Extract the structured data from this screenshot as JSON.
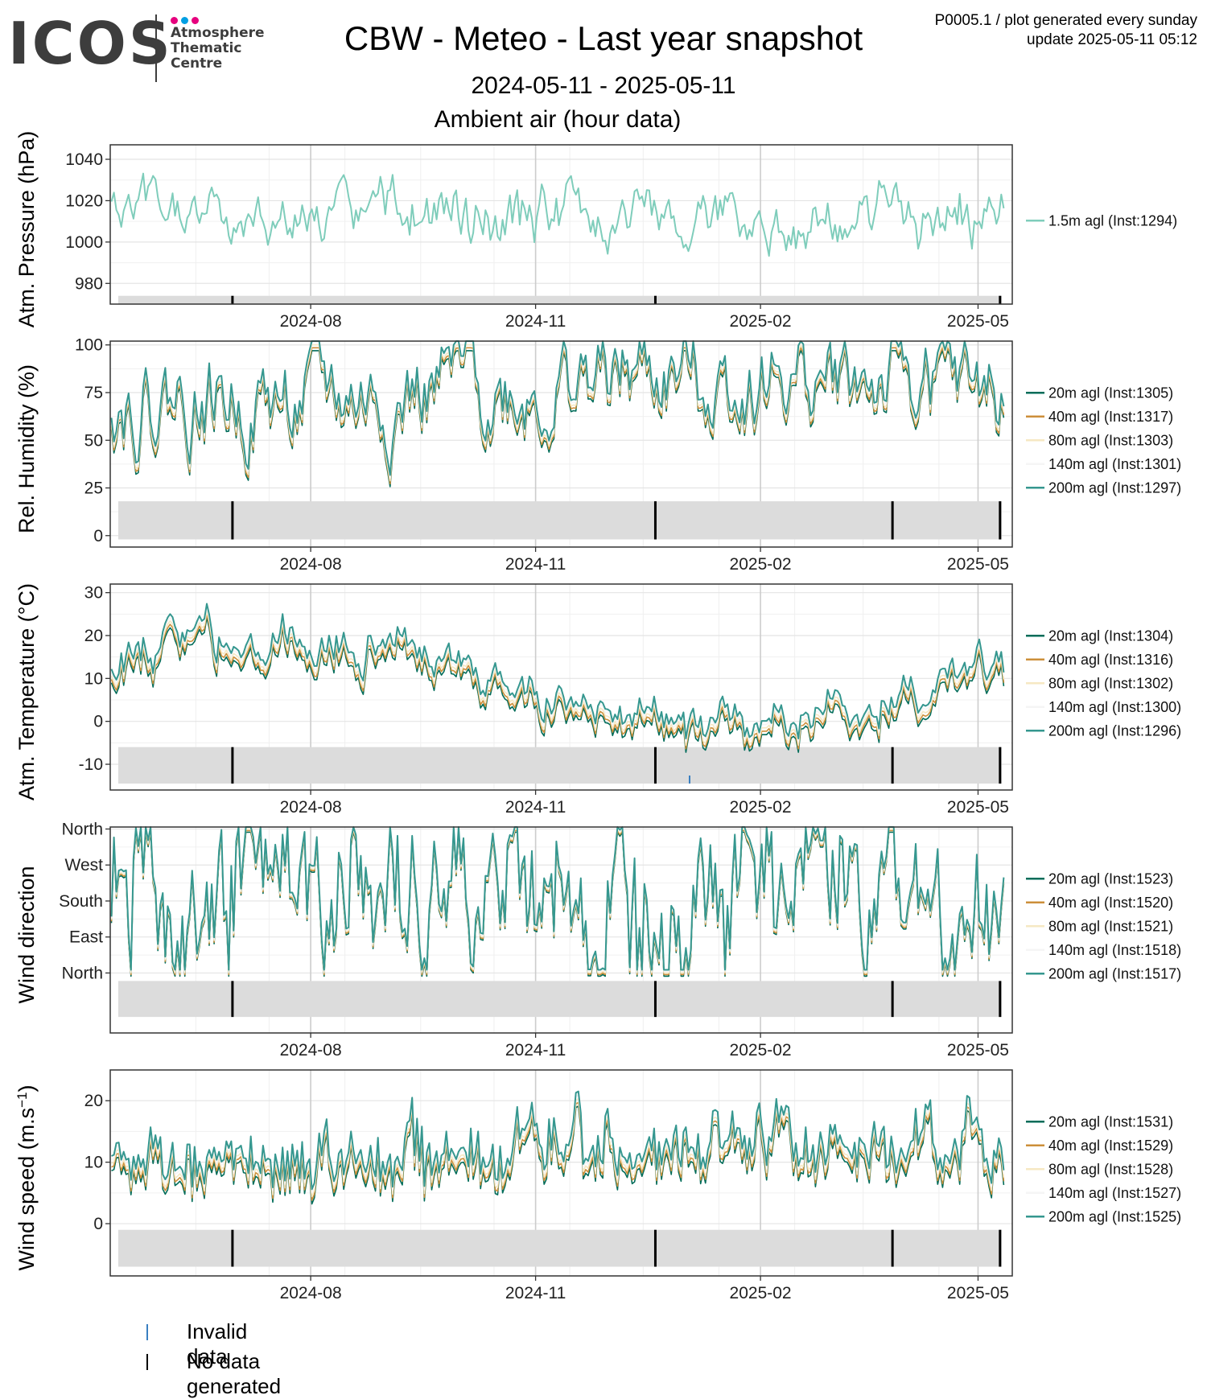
{
  "logo": {
    "word": "ICOS",
    "line1": "Atmosphere",
    "line2": "Thematic",
    "line3": "Centre",
    "dot_colors": [
      "#e6007e",
      "#009fe3",
      "#e6007e"
    ]
  },
  "header": {
    "title": "CBW - Meteo - Last year snapshot",
    "date_range": "2024-05-11 - 2025-05-11",
    "subtitle": "Ambient air (hour data)",
    "meta_line1": "P0005.1 / plot generated every sunday",
    "meta_line2": "update  2025-05-11 05:12"
  },
  "legend_bottom": [
    {
      "label": "Invalid data",
      "color": "#3a7fc1"
    },
    {
      "label": "No data generated",
      "color": "#000000"
    }
  ],
  "chart_data": [
    {
      "type": "line",
      "ylabel": "Atm. Pressure (hPa)",
      "ylim": [
        970,
        1047
      ],
      "yticks": [
        980,
        1000,
        1020,
        1040
      ],
      "ytick_labels": [
        "980",
        "1000",
        "1020",
        "1040"
      ],
      "xlim": [
        "2024-05-11",
        "2025-05-15"
      ],
      "xticks": [
        "2024-08-01",
        "2024-11-01",
        "2025-02-01",
        "2025-05-01"
      ],
      "xtick_labels": [
        "2024-08",
        "2024-11",
        "2025-02",
        "2025-05"
      ],
      "grid": true,
      "legend_position": "right",
      "status_band": {
        "range": [
          970,
          974
        ],
        "no_data_dates": [
          "2024-06-30",
          "2024-12-20",
          "2025-05-10"
        ],
        "invalid_dates": []
      },
      "series": [
        {
          "name": "1.5m agl (Inst:1294)",
          "color": "#7fcdbb",
          "amplitude": 12,
          "base": 1014,
          "seed": 3,
          "values": []
        }
      ]
    },
    {
      "type": "line",
      "ylabel": "Rel. Humidity (%)",
      "ylim": [
        -6,
        102
      ],
      "yticks": [
        0,
        25,
        50,
        75,
        100
      ],
      "ytick_labels": [
        "0",
        "25",
        "50",
        "75",
        "100"
      ],
      "xlim": [
        "2024-05-11",
        "2025-05-15"
      ],
      "xticks": [
        "2024-08-01",
        "2024-11-01",
        "2025-02-01",
        "2025-05-01"
      ],
      "xtick_labels": [
        "2024-08",
        "2024-11",
        "2025-02",
        "2025-05"
      ],
      "grid": true,
      "legend_position": "right",
      "status_band": {
        "range": [
          -2,
          18
        ],
        "no_data_dates": [
          "2024-06-30",
          "2024-12-20",
          "2025-03-27",
          "2025-05-10"
        ],
        "invalid_dates": []
      },
      "series": [
        {
          "name": "20m agl (Inst:1305)",
          "color": "#016c59",
          "values": []
        },
        {
          "name": "40m agl (Inst:1317)",
          "color": "#cc8f3a",
          "values": []
        },
        {
          "name": "80m agl (Inst:1303)",
          "color": "#f6e8c3",
          "values": []
        },
        {
          "name": "140m agl (Inst:1301)",
          "color": "#f5f5f5",
          "values": []
        },
        {
          "name": "200m agl (Inst:1297)",
          "color": "#35978f",
          "values": []
        }
      ]
    },
    {
      "type": "line",
      "ylabel": "Atm. Temperature (°C)",
      "ylim": [
        -16,
        32
      ],
      "yticks": [
        -10,
        0,
        10,
        20,
        30
      ],
      "ytick_labels": [
        "-10",
        "0",
        "10",
        "20",
        "30"
      ],
      "xlim": [
        "2024-05-11",
        "2025-05-15"
      ],
      "xticks": [
        "2024-08-01",
        "2024-11-01",
        "2025-02-01",
        "2025-05-01"
      ],
      "xtick_labels": [
        "2024-08",
        "2024-11",
        "2025-02",
        "2025-05"
      ],
      "grid": true,
      "legend_position": "right",
      "status_band": {
        "range": [
          -14.5,
          -6
        ],
        "no_data_dates": [
          "2024-06-30",
          "2024-12-20",
          "2025-03-27",
          "2025-05-10"
        ],
        "invalid_dates": [
          "2025-01-03"
        ]
      },
      "series": [
        {
          "name": "20m agl (Inst:1304)",
          "color": "#016c59",
          "values": []
        },
        {
          "name": "40m agl (Inst:1316)",
          "color": "#cc8f3a",
          "values": []
        },
        {
          "name": "80m agl (Inst:1302)",
          "color": "#f6e8c3",
          "values": []
        },
        {
          "name": "140m agl (Inst:1300)",
          "color": "#f5f5f5",
          "values": []
        },
        {
          "name": "200m agl (Inst:1296)",
          "color": "#35978f",
          "values": []
        }
      ]
    },
    {
      "type": "line",
      "ylabel": "Wind direction",
      "ylim": [
        -150,
        365
      ],
      "yticks": [
        0,
        90,
        180,
        270,
        360
      ],
      "ytick_labels": [
        "North",
        "East",
        "South",
        "West",
        "North"
      ],
      "xlim": [
        "2024-05-11",
        "2025-05-15"
      ],
      "xticks": [
        "2024-08-01",
        "2024-11-01",
        "2025-02-01",
        "2025-05-01"
      ],
      "xtick_labels": [
        "2024-08",
        "2024-11",
        "2025-02",
        "2025-05"
      ],
      "grid": true,
      "legend_position": "right",
      "status_band": {
        "range": [
          -110,
          -20
        ],
        "no_data_dates": [
          "2024-06-30",
          "2024-12-20",
          "2025-03-27",
          "2025-05-10"
        ],
        "invalid_dates": []
      },
      "series": [
        {
          "name": "20m agl (Inst:1523)",
          "color": "#016c59",
          "values": []
        },
        {
          "name": "40m agl (Inst:1520)",
          "color": "#cc8f3a",
          "values": []
        },
        {
          "name": "80m agl (Inst:1521)",
          "color": "#f6e8c3",
          "values": []
        },
        {
          "name": "140m agl (Inst:1518)",
          "color": "#f5f5f5",
          "values": []
        },
        {
          "name": "200m agl (Inst:1517)",
          "color": "#35978f",
          "values": []
        }
      ]
    },
    {
      "type": "line",
      "ylabel": "Wind speed (m.s",
      "ylabel_sup": "−1",
      "ylabel_close": ")",
      "ylim": [
        -8.5,
        25
      ],
      "yticks": [
        0,
        10,
        20
      ],
      "ytick_labels": [
        "0",
        "10",
        "20"
      ],
      "xlim": [
        "2024-05-11",
        "2025-05-15"
      ],
      "xticks": [
        "2024-08-01",
        "2024-11-01",
        "2025-02-01",
        "2025-05-01"
      ],
      "xtick_labels": [
        "2024-08",
        "2024-11",
        "2025-02",
        "2025-05"
      ],
      "grid": true,
      "legend_position": "right",
      "status_band": {
        "range": [
          -7,
          -1
        ],
        "no_data_dates": [
          "2024-06-30",
          "2024-12-20",
          "2025-03-27",
          "2025-05-10"
        ],
        "invalid_dates": []
      },
      "series": [
        {
          "name": "20m agl (Inst:1531)",
          "color": "#016c59",
          "values": []
        },
        {
          "name": "40m agl (Inst:1529)",
          "color": "#cc8f3a",
          "values": []
        },
        {
          "name": "80m agl (Inst:1528)",
          "color": "#f6e8c3",
          "values": []
        },
        {
          "name": "140m agl (Inst:1527)",
          "color": "#f5f5f5",
          "values": []
        },
        {
          "name": "200m agl (Inst:1525)",
          "color": "#35978f",
          "values": []
        }
      ]
    }
  ]
}
